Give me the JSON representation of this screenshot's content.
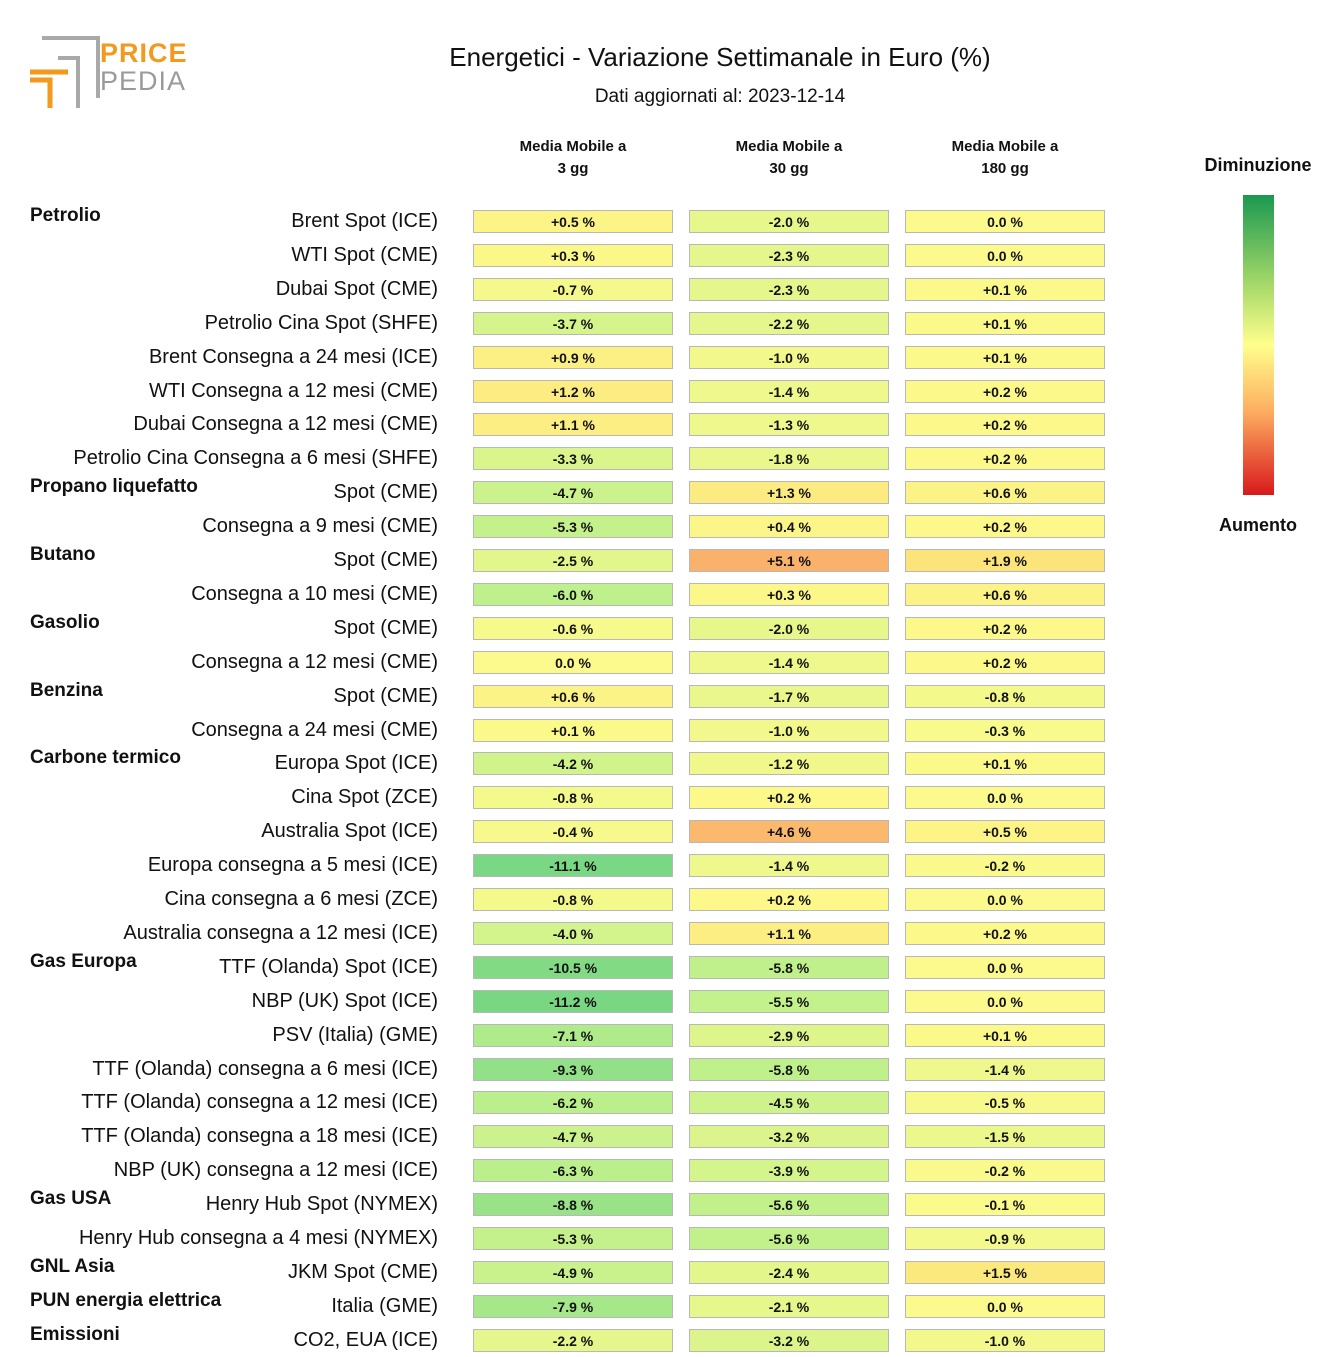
{
  "logo": {
    "line1": "PRICE",
    "line2": "PEDIA"
  },
  "title": "Energetici - Variazione Settimanale in Euro (%)",
  "subtitle": "Dati aggiornati al: 2023-12-14",
  "columns": [
    {
      "line1": "Media Mobile a",
      "line2": "3 gg"
    },
    {
      "line1": "Media Mobile a",
      "line2": "30 gg"
    },
    {
      "line1": "Media Mobile a",
      "line2": "180 gg"
    }
  ],
  "legend": {
    "top": "Diminuzione",
    "bottom": "Aumento",
    "colors": [
      "#1a9850",
      "#a6d96a",
      "#ffff8c",
      "#fdae61",
      "#d7191c"
    ]
  },
  "chart_data": {
    "type": "heatmap",
    "title": "Energetici - Variazione Settimanale in Euro (%)",
    "columns": [
      "Media Mobile a 3 gg",
      "Media Mobile a 30 gg",
      "Media Mobile a 180 gg"
    ],
    "rows": [
      {
        "group": "Petrolio",
        "label": "Brent Spot (ICE)",
        "values": [
          0.5,
          -2.0,
          0.0
        ],
        "text": [
          "+0.5 %",
          "-2.0 %",
          "0.0 %"
        ]
      },
      {
        "group": "",
        "label": "WTI Spot (CME)",
        "values": [
          0.3,
          -2.3,
          0.0
        ],
        "text": [
          "+0.3 %",
          "-2.3 %",
          "0.0 %"
        ]
      },
      {
        "group": "",
        "label": "Dubai Spot (CME)",
        "values": [
          -0.7,
          -2.3,
          0.1
        ],
        "text": [
          "-0.7 %",
          "-2.3 %",
          "+0.1 %"
        ]
      },
      {
        "group": "",
        "label": "Petrolio Cina Spot (SHFE)",
        "values": [
          -3.7,
          -2.2,
          0.1
        ],
        "text": [
          "-3.7 %",
          "-2.2 %",
          "+0.1 %"
        ]
      },
      {
        "group": "",
        "label": "Brent Consegna a 24 mesi (ICE)",
        "values": [
          0.9,
          -1.0,
          0.1
        ],
        "text": [
          "+0.9 %",
          "-1.0 %",
          "+0.1 %"
        ]
      },
      {
        "group": "",
        "label": "WTI Consegna a 12 mesi (CME)",
        "values": [
          1.2,
          -1.4,
          0.2
        ],
        "text": [
          "+1.2 %",
          "-1.4 %",
          "+0.2 %"
        ]
      },
      {
        "group": "",
        "label": "Dubai Consegna a 12 mesi (CME)",
        "values": [
          1.1,
          -1.3,
          0.2
        ],
        "text": [
          "+1.1 %",
          "-1.3 %",
          "+0.2 %"
        ]
      },
      {
        "group": "",
        "label": "Petrolio Cina Consegna a 6 mesi (SHFE)",
        "values": [
          -3.3,
          -1.8,
          0.2
        ],
        "text": [
          "-3.3 %",
          "-1.8 %",
          "+0.2 %"
        ]
      },
      {
        "group": "Propano liquefatto",
        "label": "Spot (CME)",
        "values": [
          -4.7,
          1.3,
          0.6
        ],
        "text": [
          "-4.7 %",
          "+1.3 %",
          "+0.6 %"
        ]
      },
      {
        "group": "",
        "label": "Consegna a 9 mesi (CME)",
        "values": [
          -5.3,
          0.4,
          0.2
        ],
        "text": [
          "-5.3 %",
          "+0.4 %",
          "+0.2 %"
        ]
      },
      {
        "group": "Butano",
        "label": "Spot (CME)",
        "values": [
          -2.5,
          5.1,
          1.9
        ],
        "text": [
          "-2.5 %",
          "+5.1 %",
          "+1.9 %"
        ]
      },
      {
        "group": "",
        "label": "Consegna a 10 mesi (CME)",
        "values": [
          -6.0,
          0.3,
          0.6
        ],
        "text": [
          "-6.0 %",
          "+0.3 %",
          "+0.6 %"
        ]
      },
      {
        "group": "Gasolio",
        "label": "Spot (CME)",
        "values": [
          -0.6,
          -2.0,
          0.2
        ],
        "text": [
          "-0.6 %",
          "-2.0 %",
          "+0.2 %"
        ]
      },
      {
        "group": "",
        "label": "Consegna a 12 mesi (CME)",
        "values": [
          0.0,
          -1.4,
          0.2
        ],
        "text": [
          "0.0 %",
          "-1.4 %",
          "+0.2 %"
        ]
      },
      {
        "group": "Benzina",
        "label": "Spot (CME)",
        "values": [
          0.6,
          -1.7,
          -0.8
        ],
        "text": [
          "+0.6 %",
          "-1.7 %",
          "-0.8 %"
        ]
      },
      {
        "group": "",
        "label": "Consegna a 24 mesi (CME)",
        "values": [
          0.1,
          -1.0,
          -0.3
        ],
        "text": [
          "+0.1 %",
          "-1.0 %",
          "-0.3 %"
        ]
      },
      {
        "group": "Carbone termico",
        "label": "Europa Spot (ICE)",
        "values": [
          -4.2,
          -1.2,
          0.1
        ],
        "text": [
          "-4.2 %",
          "-1.2 %",
          "+0.1 %"
        ]
      },
      {
        "group": "",
        "label": "Cina Spot (ZCE)",
        "values": [
          -0.8,
          0.2,
          0.0
        ],
        "text": [
          "-0.8 %",
          "+0.2 %",
          "0.0 %"
        ]
      },
      {
        "group": "",
        "label": "Australia Spot (ICE)",
        "values": [
          -0.4,
          4.6,
          0.5
        ],
        "text": [
          "-0.4 %",
          "+4.6 %",
          "+0.5 %"
        ]
      },
      {
        "group": "",
        "label": "Europa consegna a 5 mesi (ICE)",
        "values": [
          -11.1,
          -1.4,
          -0.2
        ],
        "text": [
          "-11.1 %",
          "-1.4 %",
          "-0.2 %"
        ]
      },
      {
        "group": "",
        "label": "Cina consegna a 6 mesi (ZCE)",
        "values": [
          -0.8,
          0.2,
          0.0
        ],
        "text": [
          "-0.8 %",
          "+0.2 %",
          "0.0 %"
        ]
      },
      {
        "group": "",
        "label": "Australia consegna a 12 mesi (ICE)",
        "values": [
          -4.0,
          1.1,
          0.2
        ],
        "text": [
          "-4.0 %",
          "+1.1 %",
          "+0.2 %"
        ]
      },
      {
        "group": "Gas Europa",
        "label": "TTF (Olanda) Spot (ICE)",
        "values": [
          -10.5,
          -5.8,
          0.0
        ],
        "text": [
          "-10.5 %",
          "-5.8 %",
          "0.0 %"
        ]
      },
      {
        "group": "",
        "label": "NBP (UK) Spot (ICE)",
        "values": [
          -11.2,
          -5.5,
          0.0
        ],
        "text": [
          "-11.2 %",
          "-5.5 %",
          "0.0 %"
        ]
      },
      {
        "group": "",
        "label": "PSV (Italia) (GME)",
        "values": [
          -7.1,
          -2.9,
          0.1
        ],
        "text": [
          "-7.1 %",
          "-2.9 %",
          "+0.1 %"
        ]
      },
      {
        "group": "",
        "label": "TTF (Olanda) consegna a 6 mesi (ICE)",
        "values": [
          -9.3,
          -5.8,
          -1.4
        ],
        "text": [
          "-9.3 %",
          "-5.8 %",
          "-1.4 %"
        ]
      },
      {
        "group": "",
        "label": "TTF (Olanda) consegna a 12 mesi (ICE)",
        "values": [
          -6.2,
          -4.5,
          -0.5
        ],
        "text": [
          "-6.2 %",
          "-4.5 %",
          "-0.5 %"
        ]
      },
      {
        "group": "",
        "label": "TTF (Olanda) consegna a 18 mesi (ICE)",
        "values": [
          -4.7,
          -3.2,
          -1.5
        ],
        "text": [
          "-4.7 %",
          "-3.2 %",
          "-1.5 %"
        ]
      },
      {
        "group": "",
        "label": "NBP (UK) consegna a 12 mesi (ICE)",
        "values": [
          -6.3,
          -3.9,
          -0.2
        ],
        "text": [
          "-6.3 %",
          "-3.9 %",
          "-0.2 %"
        ]
      },
      {
        "group": "Gas USA",
        "label": "Henry Hub Spot (NYMEX)",
        "values": [
          -8.8,
          -5.6,
          -0.1
        ],
        "text": [
          "-8.8 %",
          "-5.6 %",
          "-0.1 %"
        ]
      },
      {
        "group": "",
        "label": "Henry Hub consegna a 4 mesi (NYMEX)",
        "values": [
          -5.3,
          -5.6,
          -0.9
        ],
        "text": [
          "-5.3 %",
          "-5.6 %",
          "-0.9 %"
        ]
      },
      {
        "group": "GNL Asia",
        "label": "JKM Spot (CME)",
        "values": [
          -4.9,
          -2.4,
          1.5
        ],
        "text": [
          "-4.9 %",
          "-2.4 %",
          "+1.5 %"
        ]
      },
      {
        "group": "PUN energia elettrica",
        "label": "Italia (GME)",
        "values": [
          -7.9,
          -2.1,
          0.0
        ],
        "text": [
          "-7.9 %",
          "-2.1 %",
          "0.0 %"
        ]
      },
      {
        "group": "Emissioni",
        "label": "CO2, EUA (ICE)",
        "values": [
          -2.2,
          -3.2,
          -1.0
        ],
        "text": [
          "-2.2 %",
          "-3.2 %",
          "-1.0 %"
        ]
      }
    ]
  }
}
